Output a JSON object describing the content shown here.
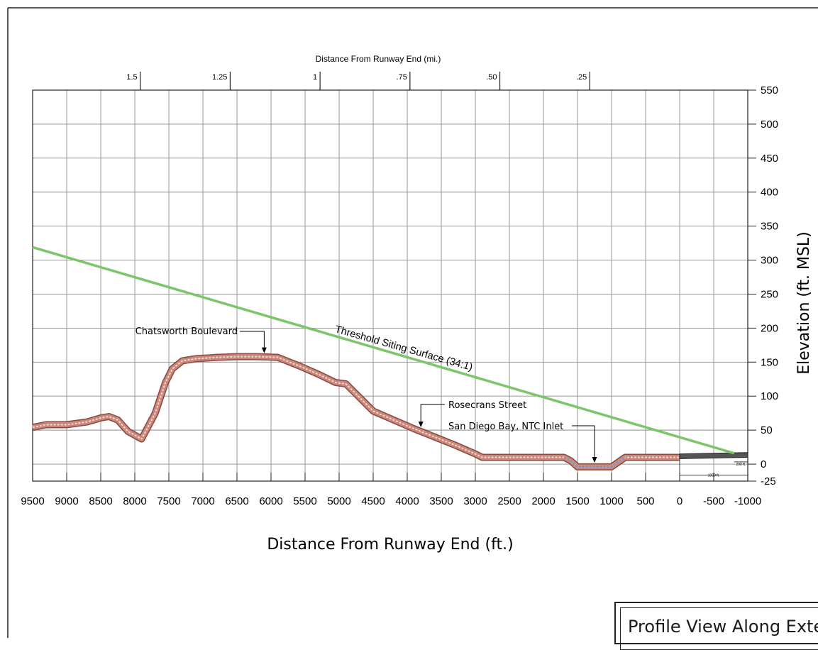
{
  "chart_data": {
    "type": "line",
    "xlabel": "Distance From Runway End (ft.)",
    "ylabel": "Elevation (ft. MSL)",
    "top_axis_label": "Distance From Runway End (mi.)",
    "xlim": [
      9500,
      -1000
    ],
    "ylim": [
      -25,
      550
    ],
    "x_ticks": [
      "9500",
      "9000",
      "8500",
      "8000",
      "7500",
      "7000",
      "6500",
      "6000",
      "5500",
      "5000",
      "4500",
      "4000",
      "3500",
      "3000",
      "2500",
      "2000",
      "1500",
      "1000",
      "500",
      "0",
      "-500",
      "-1000"
    ],
    "x_tick_values": [
      9500,
      9000,
      8500,
      8000,
      7500,
      7000,
      6500,
      6000,
      5500,
      5000,
      4500,
      4000,
      3500,
      3000,
      2500,
      2000,
      1500,
      1000,
      500,
      0,
      -500,
      -1000
    ],
    "y_ticks": [
      "550",
      "500",
      "450",
      "400",
      "350",
      "300",
      "250",
      "200",
      "150",
      "100",
      "50",
      "0",
      "-25"
    ],
    "y_tick_values": [
      550,
      500,
      450,
      400,
      350,
      300,
      250,
      200,
      150,
      100,
      50,
      0,
      -25
    ],
    "top_ticks": [
      {
        "label": "1.5",
        "x": 7920
      },
      {
        "label": "1.25",
        "x": 6600
      },
      {
        "label": "1",
        "x": 5280
      },
      {
        "label": ".75",
        "x": 3960
      },
      {
        "label": ".50",
        "x": 2640
      },
      {
        "label": ".25",
        "x": 1320
      }
    ],
    "grid": true,
    "series": [
      {
        "name": "Threshold Siting Surface (34:1)",
        "color": "#7cc56b",
        "points": [
          [
            9500,
            319
          ],
          [
            -800,
            16
          ]
        ]
      },
      {
        "name": "",
        "color": "#c9877c",
        "points": [
          [
            9500,
            54
          ],
          [
            9300,
            58
          ],
          [
            9000,
            58
          ],
          [
            8700,
            62
          ],
          [
            8500,
            68
          ],
          [
            8380,
            70
          ],
          [
            8250,
            65
          ],
          [
            8100,
            48
          ],
          [
            7900,
            37
          ],
          [
            7700,
            75
          ],
          [
            7550,
            120
          ],
          [
            7450,
            140
          ],
          [
            7300,
            152
          ],
          [
            7100,
            155
          ],
          [
            6800,
            157
          ],
          [
            6500,
            158
          ],
          [
            6200,
            158
          ],
          [
            5900,
            157
          ],
          [
            5600,
            145
          ],
          [
            5300,
            132
          ],
          [
            5050,
            120
          ],
          [
            4900,
            118
          ],
          [
            4700,
            98
          ],
          [
            4500,
            78
          ],
          [
            4200,
            65
          ],
          [
            3900,
            52
          ],
          [
            3600,
            40
          ],
          [
            3300,
            28
          ],
          [
            3000,
            15
          ],
          [
            2900,
            10
          ],
          [
            2500,
            10
          ],
          [
            2000,
            10
          ],
          [
            1700,
            10
          ],
          [
            1600,
            5
          ],
          [
            1500,
            -4
          ],
          [
            1000,
            -4
          ],
          [
            800,
            10
          ],
          [
            500,
            10
          ],
          [
            200,
            10
          ],
          [
            0,
            10
          ]
        ]
      },
      {
        "name": "",
        "color": "#555555",
        "points": [
          [
            0,
            12
          ],
          [
            -1000,
            14
          ]
        ]
      }
    ],
    "annotations": [
      {
        "text": "Chatsworth Boulevard",
        "target": [
          6100,
          157
        ]
      },
      {
        "text": "Threshold Siting Surface (34:1)",
        "on_series": 0
      },
      {
        "text": "Rosecrans Street",
        "target": [
          3800,
          50
        ]
      },
      {
        "text": "San Diego Bay, NTC Inlet",
        "target": [
          1250,
          -2
        ]
      },
      {
        "text": "200 ft.",
        "scale": true
      },
      {
        "text": "1000 ft.",
        "scale": true
      }
    ]
  },
  "footer": {
    "title": "Profile View Along Exte"
  },
  "colors": {
    "grid": "#8a8a8a",
    "frame": "#222222",
    "surface": "#7cc56b",
    "terrain": "#c9877c",
    "runway": "#555555"
  }
}
